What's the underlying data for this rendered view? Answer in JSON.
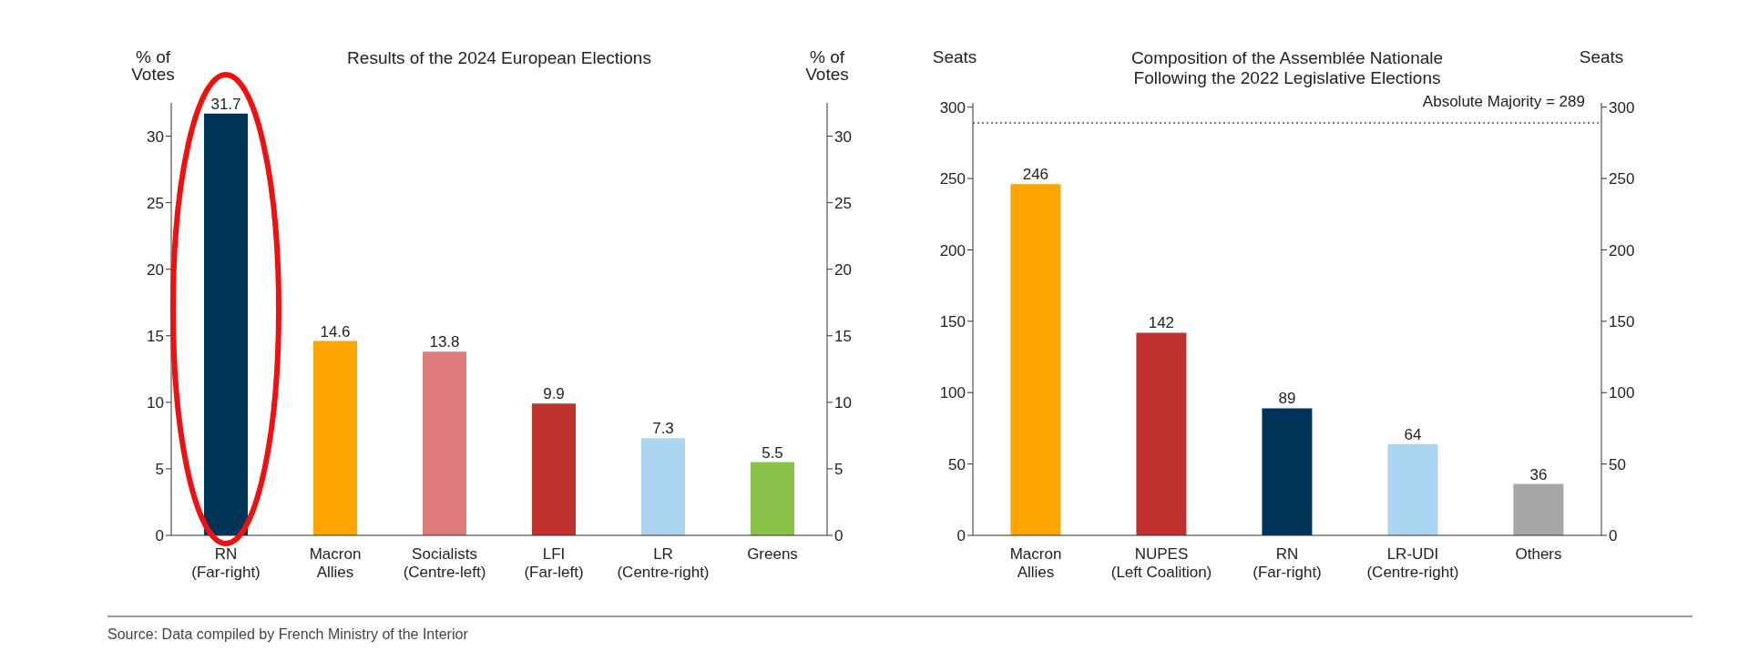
{
  "chart_data": [
    {
      "type": "bar",
      "title": "Results of the 2024 European Elections",
      "ylabel": "% of Votes",
      "y2label": "% of Votes",
      "categories": [
        "RN\n(Far-right)",
        "Macron\nAllies",
        "Socialists\n(Centre-left)",
        "LFI\n(Far-left)",
        "LR\n(Centre-right)",
        "Greens"
      ],
      "values": [
        31.7,
        14.6,
        13.8,
        9.9,
        7.3,
        5.5
      ],
      "colors": [
        "#003358",
        "#ffa500",
        "#e07b7b",
        "#c0302f",
        "#acd5f2",
        "#8bc34a"
      ],
      "ylim": [
        0,
        32.5
      ],
      "yticks": [
        0,
        5,
        10,
        15,
        20,
        25,
        30
      ],
      "y2lim": [
        0,
        32.5
      ],
      "y2ticks": [
        0,
        5,
        10,
        15,
        20,
        25,
        30
      ],
      "data_labels": true
    },
    {
      "type": "bar",
      "title": "Composition of the Assemblée Nationale\nFollowing the 2022 Legislative Elections",
      "ylabel": "Seats",
      "y2label": "Seats",
      "categories": [
        "Macron\nAllies",
        "NUPES\n(Left Coalition)",
        "RN\n(Far-right)",
        "LR-UDI\n(Centre-right)",
        "Others"
      ],
      "values": [
        246,
        142,
        89,
        64,
        36
      ],
      "colors": [
        "#ffa500",
        "#c0302f",
        "#003358",
        "#acd5f2",
        "#a6a6a6"
      ],
      "ylim": [
        0,
        303
      ],
      "yticks": [
        0,
        50,
        100,
        150,
        200,
        250,
        300
      ],
      "y2lim": [
        0,
        303
      ],
      "y2ticks": [
        0,
        50,
        100,
        150,
        200,
        250,
        300
      ],
      "data_labels": true,
      "ref_lines": [
        {
          "axis": "y",
          "value": 289,
          "label": "Absolute Majority = 289",
          "line_style": "dotted",
          "color": "#555555"
        }
      ],
      "annotations": [
        "Source: Data compiled by French Ministry of the Interior"
      ]
    }
  ]
}
